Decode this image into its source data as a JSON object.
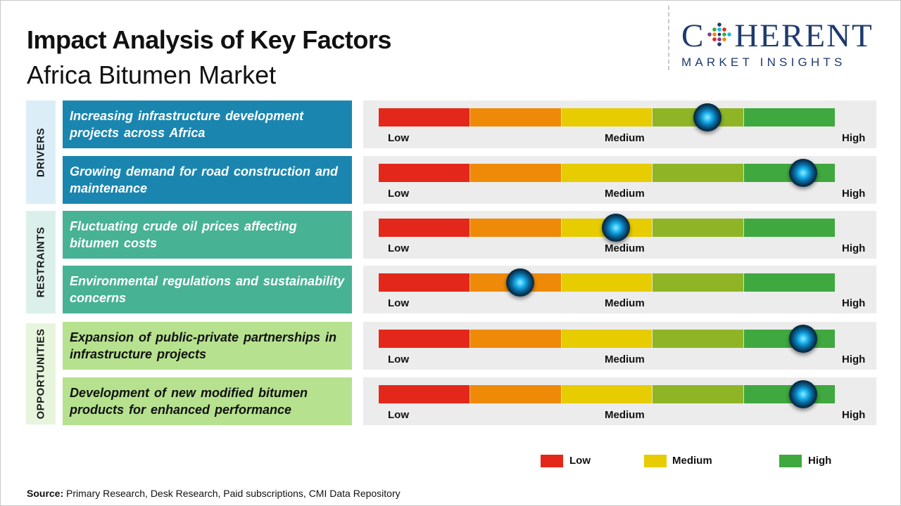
{
  "header": {
    "title": "Impact Analysis of Key Factors",
    "subtitle": "Africa Bitumen Market"
  },
  "logo": {
    "top": "C HERENT",
    "top_first": "C",
    "top_rest": "HERENT",
    "bottom": "MARKET INSIGHTS"
  },
  "colors": {
    "scale": [
      "#e3281b",
      "#ef8a09",
      "#e6cc00",
      "#8fb526",
      "#3fa83f"
    ],
    "drivers_band": "#dbeef7",
    "drivers_box": "#1a86b0",
    "restraints_band": "#dbf0ea",
    "restraints_box": "#48b295",
    "opportunities_band": "#e6f5dc",
    "opportunities_box": "#b6e18e",
    "knob": "#1ab6f0"
  },
  "categories": [
    {
      "name": "DRIVERS"
    },
    {
      "name": "RESTRAINTS"
    },
    {
      "name": "OPPORTUNITIES"
    }
  ],
  "scale_labels": {
    "low": "Low",
    "medium": "Medium",
    "high": "High"
  },
  "legend": [
    {
      "label": "Low",
      "color": "#e3281b"
    },
    {
      "label": "Medium",
      "color": "#e6cc00"
    },
    {
      "label": "High",
      "color": "#3fa83f"
    }
  ],
  "source": {
    "prefix": "Source:",
    "text": " Primary Research, Desk Research, Paid subscriptions, CMI Data Repository"
  },
  "chart_data": {
    "type": "table",
    "scale": [
      "Low",
      "Medium",
      "High"
    ],
    "scale_range": [
      0,
      1
    ],
    "factors": [
      {
        "category": "DRIVERS",
        "text": "Increasing infrastructure development projects across Africa",
        "impact": 0.72
      },
      {
        "category": "DRIVERS",
        "text": "Growing demand for road construction and maintenance",
        "impact": 0.93
      },
      {
        "category": "RESTRAINTS",
        "text": "Fluctuating crude oil prices affecting bitumen costs",
        "impact": 0.52
      },
      {
        "category": "RESTRAINTS",
        "text": "Environmental regulations and sustainability concerns",
        "impact": 0.31
      },
      {
        "category": "OPPORTUNITIES",
        "text": "Expansion of public-private partnerships in infrastructure projects",
        "impact": 0.93
      },
      {
        "category": "OPPORTUNITIES",
        "text": "Development of new modified bitumen products for enhanced performance",
        "impact": 0.93
      }
    ]
  }
}
